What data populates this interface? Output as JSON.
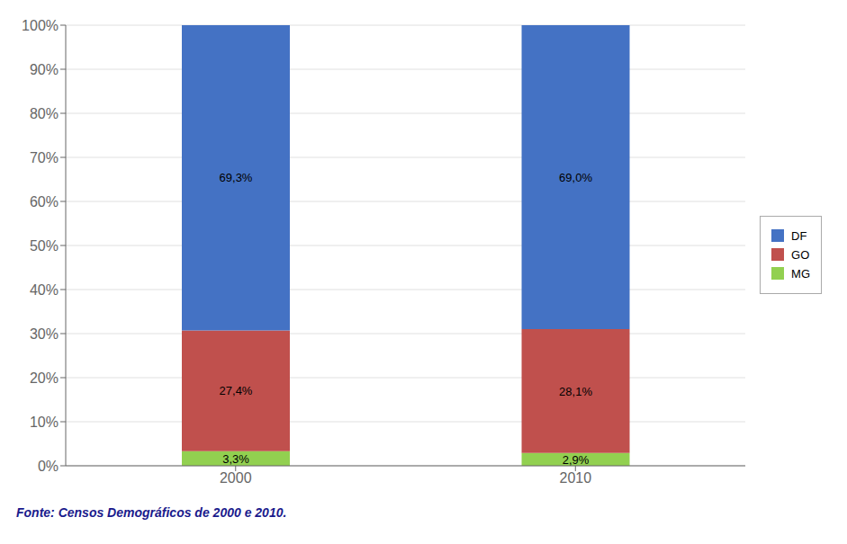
{
  "chart_data": {
    "type": "bar",
    "stacked": true,
    "categories": [
      "2000",
      "2010"
    ],
    "series": [
      {
        "name": "MG",
        "color": "#92d050",
        "values": [
          3.3,
          2.9
        ],
        "value_labels": [
          "3,3%",
          "2,9%"
        ]
      },
      {
        "name": "GO",
        "color": "#c0504d",
        "values": [
          27.4,
          28.1
        ],
        "value_labels": [
          "27,4%",
          "28,1%"
        ]
      },
      {
        "name": "DF",
        "color": "#4472c4",
        "values": [
          69.3,
          69.0
        ],
        "value_labels": [
          "69,3%",
          "69,0%"
        ]
      }
    ],
    "ylim": [
      0,
      100
    ],
    "yticks": [
      {
        "value": 0,
        "label": "0%"
      },
      {
        "value": 10,
        "label": "10%"
      },
      {
        "value": 20,
        "label": "20%"
      },
      {
        "value": 30,
        "label": "30%"
      },
      {
        "value": 40,
        "label": "40%"
      },
      {
        "value": 50,
        "label": "50%"
      },
      {
        "value": 60,
        "label": "60%"
      },
      {
        "value": 70,
        "label": "70%"
      },
      {
        "value": 80,
        "label": "80%"
      },
      {
        "value": 90,
        "label": "90%"
      },
      {
        "value": 100,
        "label": "100%"
      }
    ],
    "grid": true,
    "legend": "right",
    "data_labels": true,
    "annotations": [
      "Fonte: Censos Demográficos de 2000 e 2010."
    ]
  }
}
